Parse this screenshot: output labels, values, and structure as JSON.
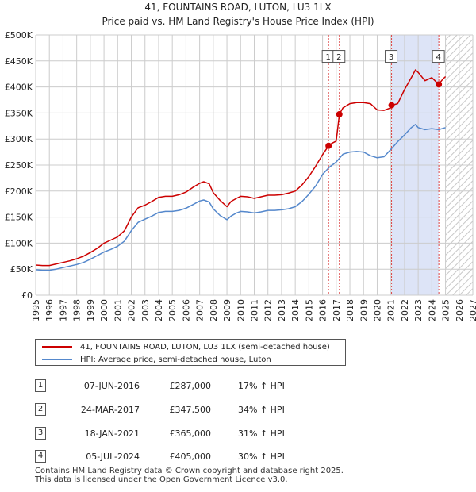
{
  "title": "41, FOUNTAINS ROAD, LUTON, LU3 1LX",
  "subtitle": "Price paid vs. HM Land Registry's House Price Index (HPI)",
  "colors": {
    "property_line": "#cc0000",
    "hpi_line": "#5588cc",
    "highlight_band": "#dde4f7",
    "marker_dash": "#dd4444",
    "grid": "#cccccc"
  },
  "chart_data": {
    "type": "line",
    "title": "41, FOUNTAINS ROAD, LUTON, LU3 1LX",
    "subtitle": "Price paid vs. HM Land Registry's House Price Index (HPI)",
    "xlabel": "",
    "ylabel": "",
    "xlim": [
      1995,
      2027
    ],
    "ylim": [
      0,
      500000
    ],
    "grid": true,
    "x_ticks": [
      1995,
      1996,
      1997,
      1998,
      1999,
      2000,
      2001,
      2002,
      2003,
      2004,
      2005,
      2006,
      2007,
      2008,
      2009,
      2010,
      2011,
      2012,
      2013,
      2014,
      2015,
      2016,
      2017,
      2018,
      2019,
      2020,
      2021,
      2022,
      2023,
      2024,
      2025,
      2026,
      2027
    ],
    "y_ticks": [
      0,
      50000,
      100000,
      150000,
      200000,
      250000,
      300000,
      350000,
      400000,
      450000,
      500000
    ],
    "y_tick_labels": [
      "£0",
      "£50K",
      "£100K",
      "£150K",
      "£200K",
      "£250K",
      "£300K",
      "£350K",
      "£400K",
      "£450K",
      "£500K"
    ],
    "highlight_band": [
      2021.05,
      2024.5
    ],
    "future_from": 2025.0,
    "series": [
      {
        "name": "41, FOUNTAINS ROAD, LUTON, LU3 1LX (semi-detached house)",
        "x": [
          1995,
          1995.5,
          1996,
          1996.5,
          1997,
          1997.5,
          1998,
          1998.5,
          1999,
          1999.5,
          2000,
          2000.5,
          2001,
          2001.5,
          2002,
          2002.5,
          2003,
          2003.5,
          2004,
          2004.5,
          2005,
          2005.5,
          2006,
          2006.5,
          2007,
          2007.3,
          2007.7,
          2008,
          2008.5,
          2009,
          2009.3,
          2009.7,
          2010,
          2010.5,
          2011,
          2011.5,
          2012,
          2012.5,
          2013,
          2013.5,
          2014,
          2014.5,
          2015,
          2015.5,
          2016,
          2016.44,
          2016.7,
          2017,
          2017.23,
          2017.5,
          2018,
          2018.5,
          2019,
          2019.5,
          2020,
          2020.5,
          2021,
          2021.05,
          2021.5,
          2022,
          2022.5,
          2022.8,
          2023,
          2023.5,
          2024,
          2024.5,
          2024.8,
          2025
        ],
        "values": [
          58000,
          57000,
          57000,
          60000,
          63000,
          66000,
          70000,
          75000,
          82000,
          90000,
          100000,
          106000,
          112000,
          124000,
          150000,
          168000,
          173000,
          180000,
          188000,
          190000,
          190000,
          193000,
          198000,
          207000,
          215000,
          218000,
          214000,
          197000,
          182000,
          170000,
          180000,
          186000,
          190000,
          189000,
          186000,
          189000,
          192000,
          192000,
          193000,
          196000,
          200000,
          212000,
          228000,
          248000,
          270000,
          287000,
          292000,
          296000,
          347500,
          360000,
          368000,
          370000,
          370000,
          368000,
          356000,
          355000,
          360000,
          365000,
          368000,
          395000,
          418000,
          433000,
          428000,
          412000,
          418000,
          405000,
          415000,
          420000
        ]
      },
      {
        "name": "HPI: Average price, semi-detached house, Luton",
        "x": [
          1995,
          1995.5,
          1996,
          1996.5,
          1997,
          1997.5,
          1998,
          1998.5,
          1999,
          1999.5,
          2000,
          2000.5,
          2001,
          2001.5,
          2002,
          2002.5,
          2003,
          2003.5,
          2004,
          2004.5,
          2005,
          2005.5,
          2006,
          2006.5,
          2007,
          2007.3,
          2007.7,
          2008,
          2008.5,
          2009,
          2009.3,
          2009.7,
          2010,
          2010.5,
          2011,
          2011.5,
          2012,
          2012.5,
          2013,
          2013.5,
          2014,
          2014.5,
          2015,
          2015.5,
          2016,
          2016.5,
          2017,
          2017.5,
          2018,
          2018.5,
          2019,
          2019.5,
          2020,
          2020.5,
          2021,
          2021.5,
          2022,
          2022.5,
          2022.8,
          2023,
          2023.5,
          2024,
          2024.5,
          2025
        ],
        "values": [
          49000,
          48000,
          48000,
          50000,
          53000,
          56000,
          59000,
          63000,
          69000,
          76000,
          83000,
          88000,
          94000,
          104000,
          124000,
          140000,
          146000,
          152000,
          159000,
          161000,
          161000,
          163000,
          167000,
          174000,
          181000,
          183000,
          179000,
          166000,
          153000,
          145000,
          152000,
          158000,
          161000,
          160000,
          158000,
          160000,
          163000,
          163000,
          164000,
          166000,
          170000,
          180000,
          194000,
          210000,
          232000,
          246000,
          256000,
          271000,
          275000,
          276000,
          275000,
          268000,
          264000,
          266000,
          280000,
          295000,
          308000,
          322000,
          328000,
          322000,
          318000,
          320000,
          318000,
          322000
        ]
      }
    ],
    "markers": [
      {
        "label": "1",
        "x": 2016.44,
        "value": 287000,
        "label_y": 458000
      },
      {
        "label": "2",
        "x": 2017.23,
        "value": 347500,
        "label_y": 458000
      },
      {
        "label": "3",
        "x": 2021.05,
        "value": 365000,
        "label_y": 458000
      },
      {
        "label": "4",
        "x": 2024.51,
        "value": 405000,
        "label_y": 458000
      }
    ]
  },
  "legend": {
    "property": "41, FOUNTAINS ROAD, LUTON, LU3 1LX (semi-detached house)",
    "hpi": "HPI: Average price, semi-detached house, Luton"
  },
  "sales": [
    {
      "num": "1",
      "date": "07-JUN-2016",
      "price": "£287,000",
      "hpi": "17% ↑ HPI"
    },
    {
      "num": "2",
      "date": "24-MAR-2017",
      "price": "£347,500",
      "hpi": "34% ↑ HPI"
    },
    {
      "num": "3",
      "date": "18-JAN-2021",
      "price": "£365,000",
      "hpi": "31% ↑ HPI"
    },
    {
      "num": "4",
      "date": "05-JUL-2024",
      "price": "£405,000",
      "hpi": "30% ↑ HPI"
    }
  ],
  "footer": {
    "line1": "Contains HM Land Registry data © Crown copyright and database right 2025.",
    "line2": "This data is licensed under the Open Government Licence v3.0."
  }
}
